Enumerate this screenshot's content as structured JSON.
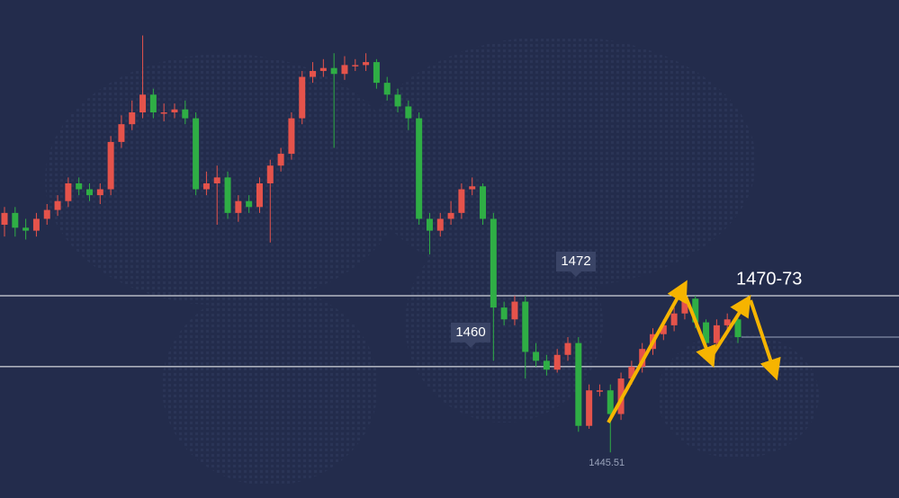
{
  "chart_data": {
    "type": "candlestick",
    "annotation": "1470-73",
    "low_label": 1445.51,
    "levels": [
      1472,
      1460
    ],
    "up_color": "#e5534b",
    "down_color": "#2fae45",
    "level_color": "#ffffff",
    "ylim": [
      1437.8,
      1522
    ],
    "open": [
      1484,
      1486,
      1483.5,
      1483,
      1485,
      1486.5,
      1488,
      1491,
      1490,
      1489,
      1490,
      1498,
      1501,
      1503,
      1506,
      1503,
      1503,
      1503.5,
      1502,
      1490,
      1491,
      1492,
      1486,
      1488,
      1487,
      1491,
      1494,
      1496,
      1502,
      1509,
      1510,
      1510.5,
      1509.5,
      1511,
      1511,
      1511.5,
      1508,
      1506,
      1504,
      1502,
      1485,
      1483,
      1485,
      1486,
      1490,
      1490.5,
      1485,
      1470,
      1468,
      1471,
      1462.5,
      1461,
      1459.5,
      1462,
      1464,
      1450,
      1456,
      1456,
      1452,
      1458,
      1460,
      1463,
      1465.5,
      1467,
      1469,
      1471.5,
      1467.5,
      1464,
      1467,
      1468
    ],
    "high": [
      1487,
      1487,
      1485,
      1486,
      1487.5,
      1489,
      1492,
      1492,
      1491,
      1491,
      1499,
      1502.5,
      1505,
      1516,
      1507,
      1504.5,
      1504.5,
      1505,
      1503,
      1493,
      1494,
      1493,
      1489,
      1489,
      1492,
      1495,
      1497,
      1503,
      1510,
      1511.5,
      1512,
      1513,
      1512.5,
      1512,
      1513,
      1512,
      1509,
      1507,
      1505,
      1503,
      1486,
      1486,
      1488,
      1491,
      1492,
      1491,
      1486,
      1471,
      1472,
      1472,
      1464,
      1462,
      1463,
      1465,
      1465,
      1457,
      1457,
      1457,
      1459,
      1461,
      1464,
      1466.5,
      1468,
      1470,
      1473,
      1472,
      1468,
      1468,
      1469,
      1469
    ],
    "low": [
      1482,
      1482,
      1481.5,
      1482,
      1484,
      1485.5,
      1487,
      1489,
      1488,
      1487.5,
      1489,
      1497,
      1500,
      1502,
      1502,
      1501.5,
      1502,
      1501,
      1489,
      1489,
      1484,
      1485,
      1484.5,
      1486,
      1486,
      1481,
      1493,
      1495,
      1501,
      1508,
      1509,
      1497,
      1508.5,
      1510,
      1510,
      1507,
      1505,
      1503,
      1500,
      1484,
      1479,
      1482,
      1484,
      1485,
      1489,
      1484,
      1461,
      1467,
      1467,
      1458,
      1460,
      1458.5,
      1459,
      1461,
      1449,
      1449.5,
      1455,
      1445.51,
      1451,
      1457,
      1459,
      1462,
      1464.5,
      1466,
      1468,
      1466.5,
      1463,
      1463,
      1466,
      1464
    ],
    "close": [
      1486,
      1483.5,
      1483,
      1485,
      1486.5,
      1488,
      1491,
      1490,
      1489,
      1490,
      1498,
      1501,
      1503,
      1506,
      1503,
      1503,
      1503.5,
      1502,
      1490,
      1491,
      1492,
      1486,
      1488,
      1487,
      1491,
      1494,
      1496,
      1502,
      1509,
      1510,
      1510.5,
      1509.5,
      1511,
      1511,
      1511.5,
      1508,
      1506,
      1504,
      1502,
      1485,
      1483,
      1485,
      1486,
      1490,
      1490.5,
      1485,
      1470,
      1468,
      1471,
      1462.5,
      1461,
      1459.5,
      1462,
      1464,
      1450,
      1456,
      1456,
      1452,
      1458,
      1460,
      1463,
      1465.5,
      1467,
      1469,
      1471.5,
      1467.5,
      1464,
      1467,
      1468,
      1465
    ]
  }
}
